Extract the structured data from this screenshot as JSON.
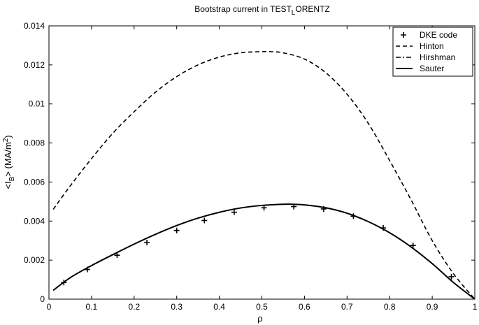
{
  "chart_data": {
    "type": "line",
    "title": {
      "prefix": "Bootstrap current in TEST",
      "sub": "L",
      "suffix": "ORENTZ"
    },
    "xlabel": "ρ",
    "ylabel": {
      "prefix": "<I",
      "sub": "B",
      "mid": "> (MA/m",
      "sup": "2",
      "suffix": ")"
    },
    "xlim": [
      0,
      1
    ],
    "ylim": [
      0,
      0.014
    ],
    "xticks": [
      0,
      0.1,
      0.2,
      0.3,
      0.4,
      0.5,
      0.6,
      0.7,
      0.8,
      0.9,
      1
    ],
    "xtick_labels": [
      "0",
      "0.1",
      "0.2",
      "0.3",
      "0.4",
      "0.5",
      "0.6",
      "0.7",
      "0.8",
      "0.9",
      "1"
    ],
    "yticks": [
      0,
      0.002,
      0.004,
      0.006,
      0.008,
      0.01,
      0.012,
      0.014
    ],
    "ytick_labels": [
      "0",
      "0.002",
      "0.004",
      "0.006",
      "0.008",
      "0.01",
      "0.012",
      "0.014"
    ],
    "grid": false,
    "legend_position": "top-right",
    "series": [
      {
        "name": "DKE code",
        "style": "markers",
        "x": [
          0.035,
          0.09,
          0.16,
          0.23,
          0.3,
          0.365,
          0.435,
          0.505,
          0.575,
          0.645,
          0.715,
          0.785,
          0.855,
          0.945
        ],
        "y": [
          0.00085,
          0.00152,
          0.00225,
          0.0029,
          0.00352,
          0.00403,
          0.00445,
          0.00468,
          0.00474,
          0.00462,
          0.00425,
          0.00365,
          0.00275,
          0.00115
        ]
      },
      {
        "name": "Hinton",
        "style": "dashed",
        "x": [
          0.01,
          0.05,
          0.1,
          0.15,
          0.2,
          0.25,
          0.3,
          0.35,
          0.4,
          0.45,
          0.5,
          0.52,
          0.55,
          0.6,
          0.65,
          0.7,
          0.75,
          0.8,
          0.85,
          0.9,
          0.95,
          1.0
        ],
        "y": [
          0.0046,
          0.0058,
          0.0072,
          0.0085,
          0.0096,
          0.0106,
          0.0114,
          0.012,
          0.0124,
          0.01262,
          0.01268,
          0.01268,
          0.01262,
          0.0123,
          0.0116,
          0.0105,
          0.009,
          0.0071,
          0.0051,
          0.003,
          0.0013,
          0.0
        ]
      },
      {
        "name": "Hirshman",
        "style": "dashdot",
        "x": [
          0.01,
          0.05,
          0.1,
          0.15,
          0.2,
          0.25,
          0.3,
          0.35,
          0.4,
          0.45,
          0.5,
          0.55,
          0.57,
          0.6,
          0.65,
          0.7,
          0.75,
          0.8,
          0.85,
          0.9,
          0.95,
          1.0
        ],
        "y": [
          0.00045,
          0.0011,
          0.00172,
          0.00228,
          0.00282,
          0.00332,
          0.00377,
          0.00415,
          0.00445,
          0.00467,
          0.0048,
          0.00486,
          0.00486,
          0.00483,
          0.00468,
          0.0044,
          0.00397,
          0.0034,
          0.00268,
          0.00182,
          0.00085,
          0.0
        ]
      },
      {
        "name": "Sauter",
        "style": "solid",
        "x": [
          0.01,
          0.05,
          0.1,
          0.15,
          0.2,
          0.25,
          0.3,
          0.35,
          0.4,
          0.45,
          0.5,
          0.55,
          0.57,
          0.6,
          0.65,
          0.7,
          0.75,
          0.8,
          0.85,
          0.9,
          0.95,
          1.0
        ],
        "y": [
          0.00045,
          0.0011,
          0.00172,
          0.00228,
          0.00282,
          0.00332,
          0.00377,
          0.00415,
          0.00445,
          0.00467,
          0.0048,
          0.00486,
          0.00486,
          0.00483,
          0.00468,
          0.0044,
          0.00397,
          0.0034,
          0.00268,
          0.00182,
          0.00085,
          0.0
        ]
      }
    ]
  }
}
